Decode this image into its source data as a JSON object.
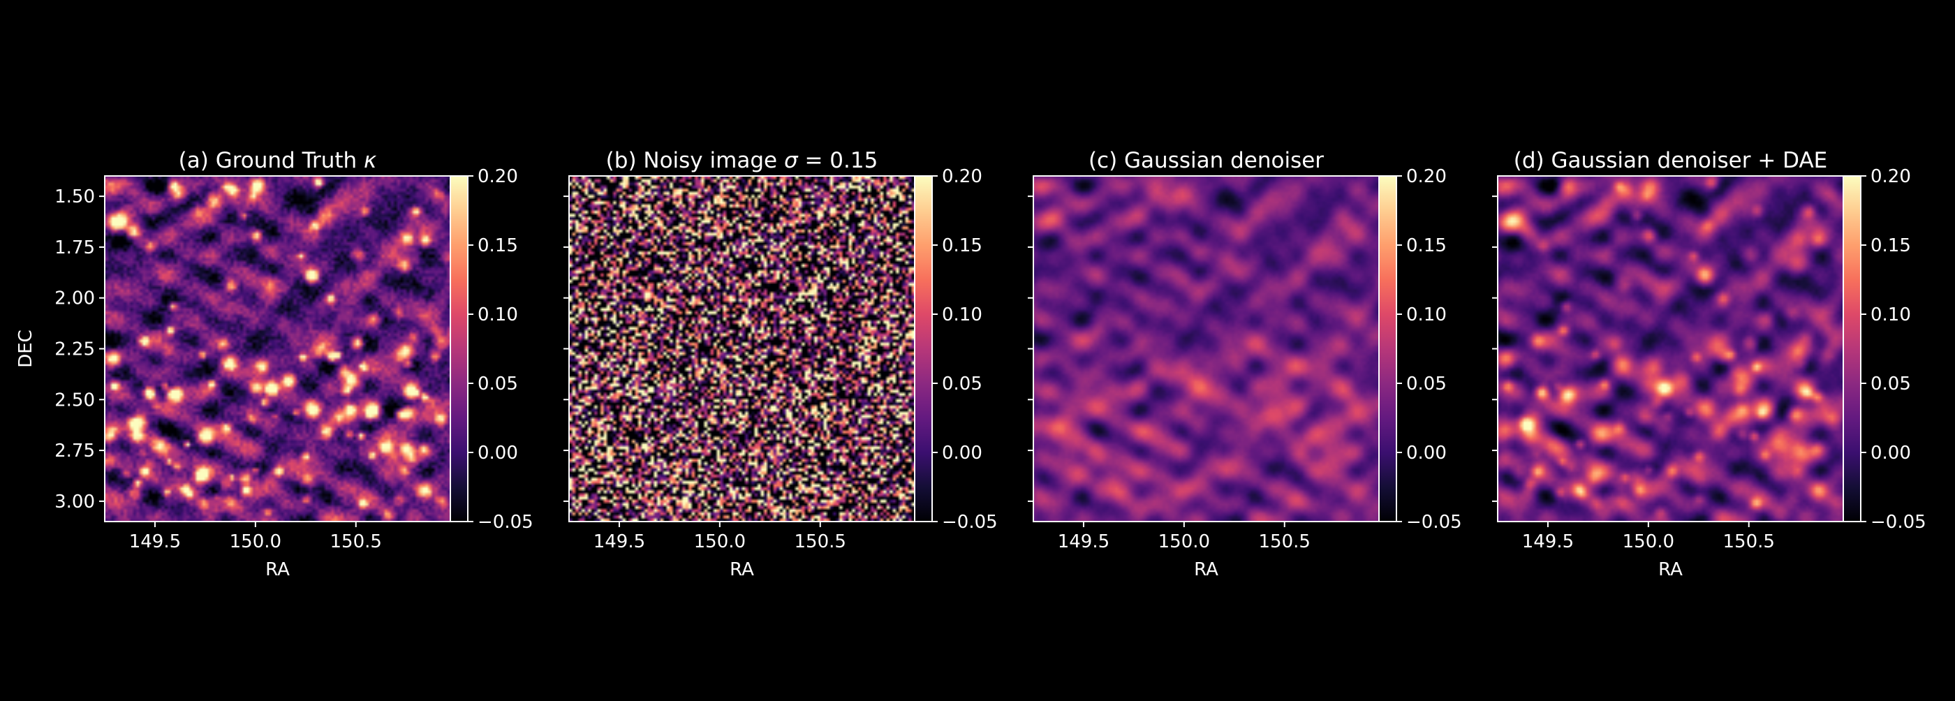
{
  "figure": {
    "background": "#000000",
    "foreground": "#ffffff",
    "colormap": "magma"
  },
  "chart_data": [
    {
      "type": "heatmap",
      "title_prefix": "(a) Ground Truth ",
      "title_symbol": "κ",
      "xlabel": "RA",
      "ylabel": "DEC",
      "xlim": [
        149.25,
        150.97
      ],
      "ylim": [
        3.1,
        1.4
      ],
      "xticks": [
        "149.5",
        "150.0",
        "150.5"
      ],
      "yticks": [
        "1.50",
        "1.75",
        "2.00",
        "2.25",
        "2.50",
        "2.75",
        "3.00"
      ],
      "show_yticklabels": true,
      "colorbar": {
        "vmin": -0.05,
        "vmax": 0.2,
        "ticks": [
          "−0.05",
          "0.00",
          "0.05",
          "0.10",
          "0.15",
          "0.20"
        ]
      },
      "texture": "sharp peaks with fine granular structure; dense cluster of bright peaks in the lower half, bright peak near RA 150.3, DEC 1.9"
    },
    {
      "type": "heatmap",
      "title_prefix": "(b) Noisy image ",
      "title_symbol": "σ",
      "title_suffix": " = 0.15",
      "xlabel": "RA",
      "ylabel": "",
      "xlim": [
        149.25,
        150.97
      ],
      "ylim": [
        3.1,
        1.4
      ],
      "xticks": [
        "149.5",
        "150.0",
        "150.5"
      ],
      "yticks": [
        "1.50",
        "1.75",
        "2.00",
        "2.25",
        "2.50",
        "2.75",
        "3.00"
      ],
      "show_yticklabels": false,
      "colorbar": {
        "vmin": -0.05,
        "vmax": 0.2,
        "ticks": [
          "−0.05",
          "0.00",
          "0.05",
          "0.10",
          "0.15",
          "0.20"
        ]
      },
      "texture": "pixel-level white noise saturating both ends of the colour scale"
    },
    {
      "type": "heatmap",
      "title_prefix": "(c) Gaussian denoiser",
      "xlabel": "RA",
      "ylabel": "",
      "xlim": [
        149.25,
        150.97
      ],
      "ylim": [
        3.1,
        1.4
      ],
      "xticks": [
        "149.5",
        "150.0",
        "150.5"
      ],
      "yticks": [
        "1.50",
        "1.75",
        "2.00",
        "2.25",
        "2.50",
        "2.75",
        "3.00"
      ],
      "show_yticklabels": false,
      "colorbar": {
        "vmin": -0.05,
        "vmax": 0.2,
        "ticks": [
          "−0.05",
          "0.00",
          "0.05",
          "0.10",
          "0.15",
          "0.20"
        ]
      },
      "texture": "smooth low-contrast blurred field, brighter diffuse region in lower half"
    },
    {
      "type": "heatmap",
      "title_prefix": "(d) Gaussian denoiser + DAE",
      "xlabel": "RA",
      "ylabel": "",
      "xlim": [
        149.25,
        150.97
      ],
      "ylim": [
        3.1,
        1.4
      ],
      "xticks": [
        "149.5",
        "150.0",
        "150.5"
      ],
      "yticks": [
        "1.50",
        "1.75",
        "2.00",
        "2.25",
        "2.50",
        "2.75",
        "3.00"
      ],
      "show_yticklabels": false,
      "colorbar": {
        "vmin": -0.05,
        "vmax": 0.2,
        "ticks": [
          "−0.05",
          "0.00",
          "0.05",
          "0.10",
          "0.15",
          "0.20"
        ]
      },
      "texture": "smooth background with restored bright peaks, cluster of peaks in lower half"
    }
  ]
}
